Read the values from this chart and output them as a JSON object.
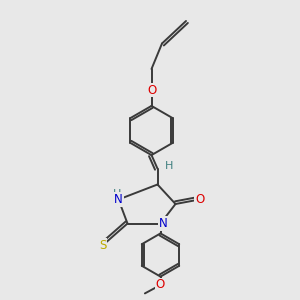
{
  "bg_color": "#e8e8e8",
  "bond_color": "#3a3a3a",
  "bond_width": 1.4,
  "atom_colors": {
    "N": "#0000cc",
    "O": "#dd0000",
    "S": "#bbaa00",
    "H": "#408080",
    "C": "#3a3a3a"
  },
  "font_size": 8.5,
  "fig_width": 3.0,
  "fig_height": 3.0,
  "dpi": 100
}
